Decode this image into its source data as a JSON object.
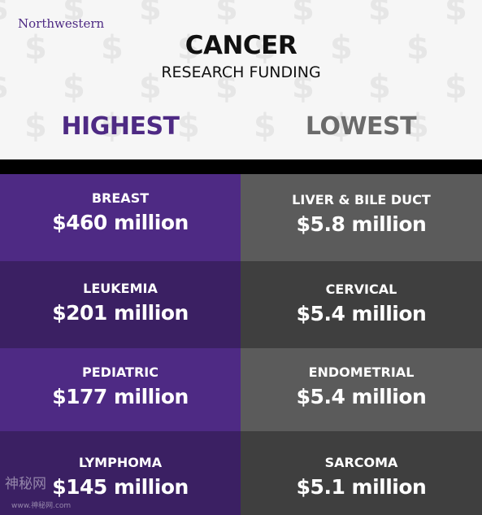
{
  "header": {
    "logo": "Northwestern",
    "title": "CANCER",
    "subtitle": "RESEARCH FUNDING",
    "highest_label": "HIGHEST",
    "lowest_label": "LOWEST"
  },
  "highest": [
    {
      "name": "BREAST",
      "amount": "$460 million"
    },
    {
      "name": "LEUKEMIA",
      "amount": "$201 million"
    },
    {
      "name": "PEDIATRIC",
      "amount": "$177 million"
    },
    {
      "name": "LYMPHOMA",
      "amount": "$145 million"
    }
  ],
  "lowest": [
    {
      "name": "LIVER & BILE DUCT",
      "amount": "$5.8 million"
    },
    {
      "name": "CERVICAL",
      "amount": "$5.4 million"
    },
    {
      "name": "ENDOMETRIAL",
      "amount": "$5.4 million"
    },
    {
      "name": "SARCOMA",
      "amount": "$5.1 million"
    }
  ],
  "colors": {
    "purple": [
      "#4e2a84",
      "#3b2063",
      "#4e2a84",
      "#3b2063"
    ],
    "gray": [
      "#5b5b5b",
      "#3f3f3f",
      "#5b5b5b",
      "#3f3f3f"
    ]
  },
  "watermark": {
    "text": "神秘网",
    "url": "www.神秘网.com"
  }
}
